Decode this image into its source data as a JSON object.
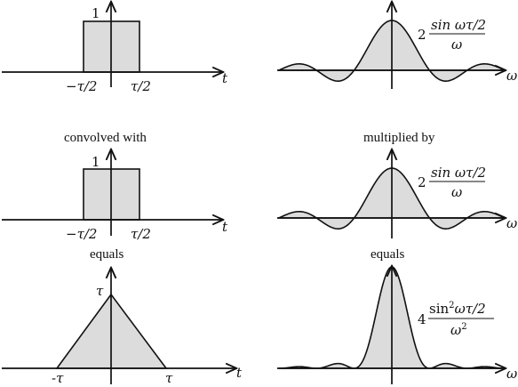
{
  "left": {
    "top_plot": {
      "height_label": "1",
      "x_neg": "−τ/2",
      "x_pos": "τ/2",
      "axis": "t"
    },
    "caption_1": "convolved with",
    "mid_plot": {
      "height_label": "1",
      "x_neg": "−τ/2",
      "x_pos": "τ/2",
      "axis": "t"
    },
    "caption_2": "equals",
    "bottom_plot": {
      "height_label": "τ",
      "x_neg": "-τ",
      "x_pos": "τ",
      "axis": "t"
    }
  },
  "right": {
    "top_plot": {
      "coef": "2",
      "num": "sin ωτ/2",
      "den": "ω",
      "axis": "ω"
    },
    "caption_1": "multiplied by",
    "mid_plot": {
      "coef": "2",
      "num": "sin ωτ/2",
      "den": "ω",
      "axis": "ω"
    },
    "caption_2": "equals",
    "bottom_plot": {
      "coef": "4",
      "num_sin": "sin",
      "num_sup": "2",
      "num_rest": "ωτ/2",
      "den_base": "ω",
      "den_sup": "2",
      "axis": "ω"
    }
  },
  "colors": {
    "fill": "#dcdcdc",
    "stroke": "#111111"
  }
}
